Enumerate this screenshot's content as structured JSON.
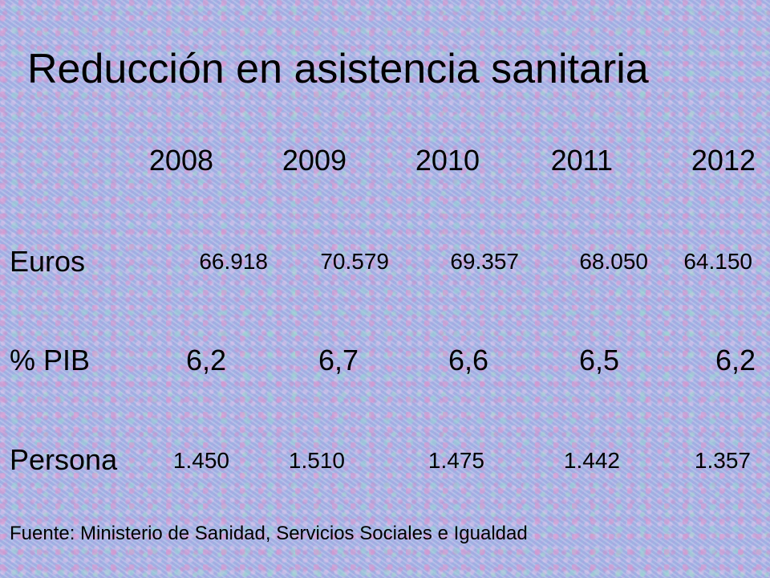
{
  "title": "Reducción en asistencia sanitaria",
  "table": {
    "years": [
      "2008",
      "2009",
      "2010",
      "2011",
      "2012"
    ],
    "rows": [
      {
        "label": "Euros",
        "values": [
          "66.918",
          "70.579",
          "69.357",
          "68.050",
          "64.150"
        ]
      },
      {
        "label": "% PIB",
        "values": [
          "6,2",
          "6,7",
          "6,6",
          "6,5",
          "6,2"
        ]
      },
      {
        "label": "Persona",
        "values": [
          "1.450",
          "1.510",
          "1.475",
          "1.442",
          "1.357"
        ]
      }
    ]
  },
  "source": "Fuente: Ministerio de Sanidad, Servicios Sociales e Igualdad"
}
